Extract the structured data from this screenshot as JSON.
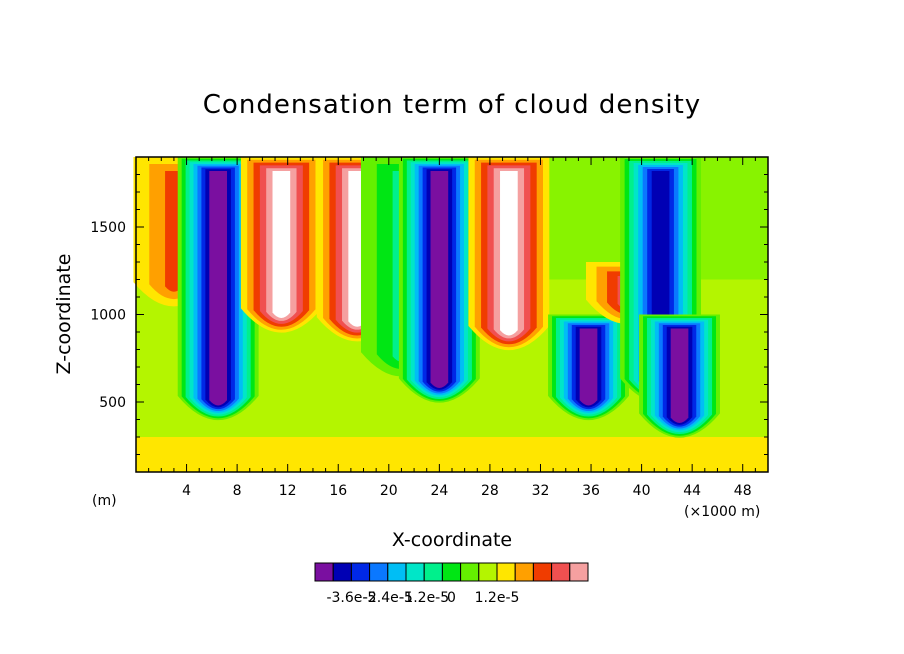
{
  "chart_data": {
    "type": "heatmap",
    "title": "Condensation term of cloud density",
    "xlabel": "X-coordinate",
    "ylabel": "Z-coordinate",
    "x_unit_left": "(m)",
    "x_unit_right": "(×1000 m)",
    "xlim": [
      0,
      50
    ],
    "ylim": [
      100,
      1900
    ],
    "x_ticks": [
      "4",
      "8",
      "12",
      "16",
      "20",
      "24",
      "28",
      "32",
      "36",
      "40",
      "44",
      "48"
    ],
    "y_ticks": [
      "500",
      "1000",
      "1500"
    ],
    "colorbar": {
      "colors": [
        "#7a0fa0",
        "#0000b4",
        "#0028e6",
        "#0a78ff",
        "#00bef5",
        "#00e6c8",
        "#00f08c",
        "#00e614",
        "#64f000",
        "#b4f500",
        "#ffe600",
        "#ffa000",
        "#f03c00",
        "#f05050",
        "#f5a0a0"
      ],
      "labels": [
        "-3.6e-5",
        "-2.4e-5",
        "-1.2e-5",
        "0",
        "1.2e-5"
      ],
      "above_top_color": "#ffffff"
    },
    "features": [
      {
        "x": 3.0,
        "z_bottom": 1000,
        "z_top": 1900,
        "min_level": 12
      },
      {
        "x": 6.5,
        "z_bottom": 350,
        "z_top": 1900,
        "min_level": 0
      },
      {
        "x": 11.5,
        "z_bottom": 850,
        "z_top": 1900,
        "min_level": 15
      },
      {
        "x": 17.5,
        "z_bottom": 800,
        "z_top": 1900,
        "min_level": 15
      },
      {
        "x": 21.0,
        "z_bottom": 600,
        "z_top": 1900,
        "min_level": 6
      },
      {
        "x": 24.0,
        "z_bottom": 450,
        "z_top": 1900,
        "min_level": 0
      },
      {
        "x": 29.5,
        "z_bottom": 750,
        "z_top": 1900,
        "min_level": 15
      },
      {
        "x": 35.8,
        "z_bottom": 350,
        "z_top": 1000,
        "min_level": 0
      },
      {
        "x": 38.8,
        "z_bottom": 900,
        "z_top": 1300,
        "min_level": 13
      },
      {
        "x": 41.5,
        "z_bottom": 450,
        "z_top": 1900,
        "min_level": 1
      },
      {
        "x": 43.0,
        "z_bottom": 250,
        "z_top": 1000,
        "min_level": 0
      }
    ]
  }
}
